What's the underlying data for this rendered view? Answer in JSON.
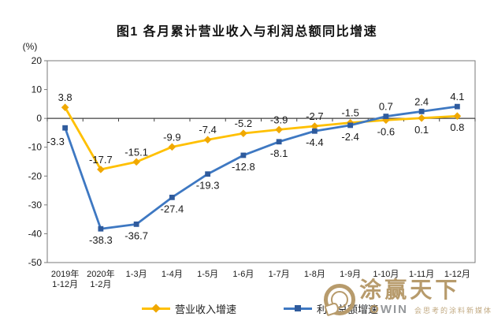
{
  "title": "图1 各月累计营业收入与利润总额同比增速",
  "chart_data": {
    "type": "line",
    "title": "图1 各月累计营业收入与利润总额同比增速",
    "unit_label": "(%)",
    "categories": [
      [
        "2019年",
        "1-12月"
      ],
      [
        "2020年",
        "1-2月"
      ],
      [
        "1-3月"
      ],
      [
        "1-4月"
      ],
      [
        "1-5月"
      ],
      [
        "1-6月"
      ],
      [
        "1-7月"
      ],
      [
        "1-8月"
      ],
      [
        "1-9月"
      ],
      [
        "1-10月"
      ],
      [
        "1-11月"
      ],
      [
        "1-12月"
      ]
    ],
    "y_ticks": [
      20,
      10,
      0,
      -10,
      -20,
      -30,
      -40,
      -50
    ],
    "ylim": [
      -50,
      20
    ],
    "grid": false,
    "legend_position": "bottom",
    "axis_color": "#7a7a7a",
    "zero_line_color": "#404040",
    "label_color": "#1a1a1a",
    "series": [
      {
        "name": "营业收入增速",
        "color": "#FFC000",
        "marker": "diamond",
        "marker_color": "#F0A800",
        "values": [
          3.8,
          -17.7,
          -15.1,
          -9.9,
          -7.4,
          -5.2,
          -3.9,
          -2.7,
          -1.5,
          -0.6,
          0.1,
          0.8
        ],
        "label_side": [
          "above",
          "above",
          "above",
          "above",
          "above",
          "above",
          "above",
          "above",
          "above",
          "below",
          "below",
          "below"
        ]
      },
      {
        "name": "利润总额增速",
        "color": "#3E78C2",
        "marker": "square",
        "marker_color": "#2F5B9D",
        "values": [
          -3.3,
          -38.3,
          -36.7,
          -27.4,
          -19.3,
          -12.8,
          -8.1,
          -4.4,
          -2.4,
          0.7,
          2.4,
          4.1
        ],
        "label_side": [
          "left-below",
          "below",
          "below",
          "below",
          "below",
          "below",
          "below",
          "below",
          "below",
          "above",
          "above",
          "above"
        ]
      }
    ]
  },
  "watermark": {
    "brand_cn": "涂赢天下",
    "brand_latin_parts": [
      "T",
      "O",
      "WIN"
    ],
    "tagline": "会思考的涂料新媒体",
    "gold": "#b79b6c",
    "gray": "#95989b"
  }
}
